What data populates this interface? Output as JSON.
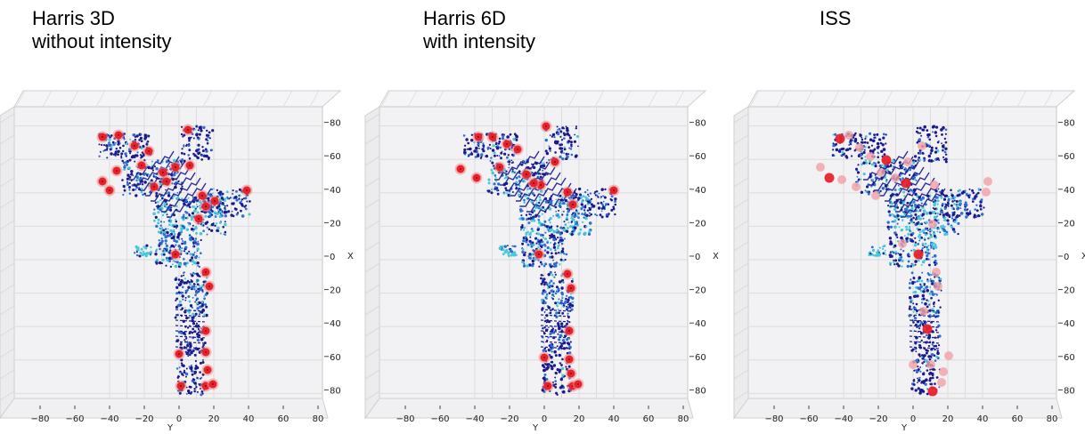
{
  "panels": [
    {
      "id": "harris3d",
      "title_lines": [
        "Harris 3D",
        "without intensity"
      ],
      "keypoint_style": "harris"
    },
    {
      "id": "harris6d",
      "title_lines": [
        "Harris 6D",
        "with intensity"
      ],
      "keypoint_style": "harris"
    },
    {
      "id": "iss",
      "title_lines": [
        "ISS"
      ],
      "keypoint_style": "iss"
    }
  ],
  "axes": {
    "y_axis_name": "Y",
    "x_axis_name": "X",
    "y_ticks": [
      "−80",
      "−60",
      "−40",
      "−20",
      "0",
      "20",
      "40",
      "60",
      "80"
    ],
    "x_ticks": [
      "80",
      "60",
      "40",
      "20",
      "0",
      "20",
      "40",
      "60",
      "80"
    ]
  },
  "colors": {
    "cloud_dark": "#1a1a8c",
    "cloud_mid": "#2b6fd6",
    "cloud_light": "#46c8d8",
    "keypoint": "#e8212b",
    "keypoint_halo": "#f08a8a",
    "iss_keypoint": "#f2a0a8",
    "grid": "#dcdcdc",
    "pane": "#f2f2f4"
  }
}
